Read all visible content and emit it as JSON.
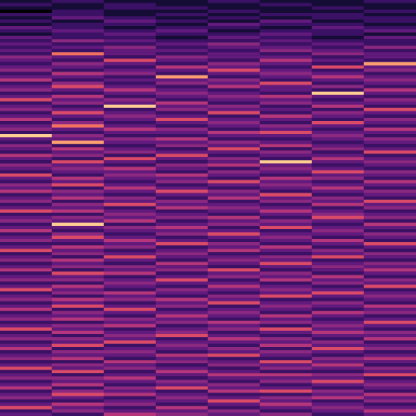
{
  "chart_data": {
    "type": "heatmap",
    "tick_labels": false,
    "color_range": [
      0,
      10
    ],
    "cells": [
      [
        1,
        2,
        1,
        1,
        2,
        1,
        1,
        2
      ],
      [
        2,
        1,
        2,
        1,
        1,
        2,
        1,
        1
      ],
      [
        1,
        1,
        2,
        2,
        1,
        1,
        2,
        1
      ],
      [
        0,
        2,
        1,
        1,
        2,
        1,
        1,
        2
      ],
      [
        2,
        2,
        1,
        2,
        1,
        2,
        2,
        1
      ],
      [
        1,
        3,
        2,
        1,
        2,
        1,
        2,
        2
      ],
      [
        2,
        1,
        3,
        2,
        1,
        3,
        1,
        2
      ],
      [
        1,
        2,
        2,
        1,
        3,
        2,
        2,
        1
      ],
      [
        3,
        2,
        1,
        2,
        2,
        1,
        3,
        2
      ],
      [
        2,
        3,
        2,
        3,
        1,
        2,
        2,
        3
      ],
      [
        1,
        2,
        3,
        2,
        2,
        3,
        2,
        1
      ],
      [
        3,
        2,
        2,
        1,
        3,
        2,
        1,
        3
      ],
      [
        2,
        4,
        3,
        2,
        2,
        3,
        2,
        2
      ],
      [
        3,
        2,
        2,
        3,
        4,
        2,
        3,
        2
      ],
      [
        2,
        3,
        4,
        2,
        3,
        3,
        2,
        4
      ],
      [
        3,
        2,
        3,
        3,
        2,
        4,
        3,
        2
      ],
      [
        2,
        7,
        3,
        2,
        3,
        2,
        4,
        3
      ],
      [
        4,
        3,
        2,
        4,
        3,
        3,
        2,
        3
      ],
      [
        3,
        2,
        6,
        3,
        2,
        5,
        3,
        2
      ],
      [
        2,
        4,
        3,
        2,
        4,
        3,
        2,
        8
      ],
      [
        3,
        3,
        2,
        5,
        3,
        2,
        6,
        3
      ],
      [
        4,
        2,
        3,
        3,
        6,
        3,
        2,
        4
      ],
      [
        2,
        5,
        4,
        2,
        3,
        4,
        3,
        2
      ],
      [
        3,
        3,
        2,
        8,
        2,
        3,
        5,
        3
      ],
      [
        5,
        2,
        3,
        3,
        4,
        2,
        3,
        4
      ],
      [
        2,
        4,
        2,
        4,
        3,
        6,
        2,
        3
      ],
      [
        3,
        6,
        3,
        2,
        5,
        3,
        4,
        2
      ],
      [
        4,
        3,
        5,
        3,
        2,
        3,
        2,
        5
      ],
      [
        2,
        2,
        3,
        4,
        3,
        2,
        9,
        3
      ],
      [
        3,
        5,
        2,
        3,
        4,
        5,
        3,
        2
      ],
      [
        6,
        3,
        4,
        2,
        3,
        3,
        2,
        4
      ],
      [
        2,
        4,
        3,
        5,
        2,
        4,
        3,
        3
      ],
      [
        3,
        2,
        9,
        3,
        4,
        2,
        5,
        2
      ],
      [
        4,
        3,
        2,
        4,
        3,
        3,
        2,
        6
      ],
      [
        2,
        6,
        3,
        2,
        6,
        2,
        4,
        3
      ],
      [
        3,
        3,
        4,
        3,
        2,
        5,
        3,
        2
      ],
      [
        5,
        2,
        3,
        6,
        3,
        3,
        2,
        4
      ],
      [
        2,
        4,
        2,
        3,
        4,
        2,
        6,
        3
      ],
      [
        3,
        7,
        3,
        2,
        3,
        4,
        3,
        2
      ],
      [
        4,
        3,
        5,
        4,
        2,
        3,
        2,
        5
      ],
      [
        2,
        2,
        3,
        3,
        5,
        6,
        3,
        3
      ],
      [
        9,
        4,
        2,
        2,
        3,
        3,
        4,
        2
      ],
      [
        3,
        3,
        4,
        5,
        2,
        2,
        3,
        4
      ],
      [
        2,
        8,
        3,
        3,
        4,
        3,
        2,
        3
      ],
      [
        4,
        2,
        2,
        4,
        3,
        5,
        3,
        2
      ],
      [
        3,
        5,
        3,
        2,
        6,
        2,
        4,
        3
      ],
      [
        2,
        3,
        4,
        3,
        3,
        4,
        2,
        6
      ],
      [
        5,
        4,
        2,
        6,
        2,
        3,
        3,
        2
      ],
      [
        3,
        2,
        6,
        3,
        4,
        2,
        5,
        3
      ],
      [
        2,
        6,
        3,
        2,
        3,
        9,
        3,
        4
      ],
      [
        4,
        3,
        2,
        4,
        5,
        3,
        2,
        3
      ],
      [
        3,
        4,
        5,
        3,
        2,
        4,
        3,
        2
      ],
      [
        2,
        3,
        3,
        2,
        4,
        3,
        6,
        4
      ],
      [
        6,
        2,
        4,
        5,
        3,
        2,
        3,
        3
      ],
      [
        3,
        5,
        3,
        3,
        2,
        5,
        4,
        2
      ],
      [
        2,
        3,
        2,
        4,
        6,
        3,
        2,
        5
      ],
      [
        4,
        6,
        3,
        2,
        3,
        4,
        3,
        3
      ],
      [
        3,
        2,
        5,
        3,
        2,
        3,
        5,
        2
      ],
      [
        5,
        4,
        3,
        6,
        4,
        2,
        3,
        4
      ],
      [
        2,
        3,
        2,
        3,
        3,
        6,
        2,
        3
      ],
      [
        3,
        5,
        4,
        2,
        5,
        3,
        4,
        2
      ],
      [
        4,
        2,
        3,
        4,
        2,
        4,
        3,
        6
      ],
      [
        2,
        4,
        6,
        3,
        3,
        2,
        5,
        3
      ],
      [
        3,
        3,
        2,
        5,
        4,
        3,
        2,
        4
      ],
      [
        6,
        5,
        3,
        2,
        3,
        5,
        3,
        2
      ],
      [
        2,
        2,
        4,
        3,
        2,
        3,
        4,
        3
      ],
      [
        3,
        4,
        3,
        4,
        5,
        2,
        6,
        4
      ],
      [
        4,
        3,
        5,
        2,
        3,
        4,
        3,
        2
      ],
      [
        2,
        9,
        2,
        3,
        4,
        3,
        2,
        5
      ],
      [
        3,
        3,
        4,
        5,
        2,
        6,
        3,
        3
      ],
      [
        5,
        2,
        3,
        3,
        3,
        2,
        4,
        2
      ],
      [
        2,
        4,
        2,
        4,
        6,
        3,
        3,
        4
      ],
      [
        3,
        6,
        3,
        2,
        3,
        4,
        2,
        3
      ],
      [
        4,
        3,
        5,
        3,
        2,
        3,
        5,
        2
      ],
      [
        2,
        2,
        3,
        6,
        4,
        2,
        3,
        6
      ],
      [
        3,
        5,
        4,
        2,
        3,
        5,
        2,
        3
      ],
      [
        6,
        3,
        2,
        3,
        5,
        3,
        4,
        2
      ],
      [
        2,
        4,
        3,
        4,
        2,
        2,
        3,
        4
      ],
      [
        3,
        2,
        6,
        3,
        3,
        4,
        6,
        3
      ],
      [
        4,
        5,
        3,
        2,
        4,
        3,
        2,
        2
      ],
      [
        2,
        3,
        2,
        5,
        3,
        6,
        3,
        4
      ],
      [
        3,
        4,
        4,
        3,
        2,
        3,
        4,
        3
      ],
      [
        5,
        2,
        3,
        4,
        6,
        2,
        3,
        5
      ],
      [
        2,
        6,
        5,
        2,
        3,
        4,
        2,
        3
      ],
      [
        3,
        3,
        2,
        3,
        4,
        3,
        5,
        2
      ],
      [
        4,
        4,
        3,
        6,
        2,
        5,
        3,
        4
      ],
      [
        2,
        2,
        4,
        3,
        3,
        2,
        4,
        3
      ],
      [
        3,
        5,
        3,
        2,
        5,
        3,
        2,
        6
      ],
      [
        6,
        3,
        2,
        4,
        3,
        4,
        3,
        2
      ],
      [
        2,
        4,
        5,
        3,
        2,
        3,
        6,
        3
      ],
      [
        3,
        2,
        3,
        2,
        4,
        6,
        3,
        4
      ],
      [
        4,
        5,
        4,
        5,
        3,
        2,
        2,
        3
      ],
      [
        2,
        3,
        2,
        3,
        6,
        3,
        4,
        2
      ],
      [
        3,
        6,
        3,
        4,
        2,
        4,
        3,
        5
      ],
      [
        5,
        2,
        6,
        2,
        3,
        3,
        2,
        3
      ],
      [
        2,
        4,
        3,
        3,
        4,
        2,
        5,
        4
      ],
      [
        3,
        3,
        2,
        5,
        3,
        5,
        3,
        2
      ],
      [
        4,
        5,
        4,
        3,
        2,
        3,
        2,
        3
      ],
      [
        2,
        2,
        3,
        4,
        5,
        4,
        3,
        6
      ],
      [
        3,
        4,
        5,
        2,
        3,
        2,
        4,
        3
      ],
      [
        6,
        3,
        2,
        3,
        4,
        6,
        3,
        2
      ],
      [
        2,
        5,
        3,
        4,
        2,
        3,
        5,
        4
      ],
      [
        3,
        2,
        4,
        6,
        3,
        2,
        3,
        3
      ],
      [
        4,
        4,
        3,
        2,
        5,
        4,
        2,
        5
      ],
      [
        2,
        3,
        6,
        3,
        3,
        3,
        4,
        2
      ],
      [
        3,
        6,
        2,
        4,
        2,
        5,
        3,
        3
      ],
      [
        5,
        2,
        3,
        3,
        4,
        2,
        6,
        4
      ],
      [
        2,
        4,
        4,
        2,
        3,
        4,
        3,
        2
      ],
      [
        3,
        3,
        3,
        5,
        6,
        3,
        2,
        3
      ],
      [
        4,
        5,
        2,
        3,
        2,
        2,
        4,
        5
      ],
      [
        2,
        2,
        5,
        4,
        3,
        6,
        3,
        3
      ],
      [
        3,
        4,
        3,
        2,
        4,
        3,
        5,
        2
      ],
      [
        6,
        3,
        4,
        3,
        2,
        4,
        3,
        4
      ],
      [
        2,
        6,
        2,
        5,
        3,
        2,
        2,
        3
      ],
      [
        3,
        2,
        3,
        3,
        5,
        5,
        4,
        6
      ],
      [
        4,
        4,
        5,
        2,
        3,
        3,
        3,
        2
      ],
      [
        2,
        3,
        3,
        4,
        2,
        4,
        6,
        3
      ],
      [
        3,
        5,
        2,
        3,
        4,
        2,
        3,
        4
      ],
      [
        5,
        2,
        4,
        6,
        3,
        3,
        2,
        3
      ],
      [
        2,
        4,
        3,
        2,
        5,
        6,
        4,
        2
      ],
      [
        3,
        6,
        5,
        3,
        2,
        2,
        3,
        5
      ],
      [
        4,
        3,
        2,
        4,
        3,
        4,
        5,
        3
      ],
      [
        2,
        2,
        3,
        3,
        6,
        3,
        2,
        4
      ],
      [
        3,
        5,
        4,
        2,
        3,
        5,
        3,
        2
      ],
      [
        6,
        3,
        2,
        5,
        2,
        3,
        4,
        3
      ],
      [
        2,
        4,
        3,
        3,
        4,
        2,
        3,
        5
      ],
      [
        3,
        2,
        5,
        4,
        3,
        4,
        2,
        3
      ]
    ]
  }
}
